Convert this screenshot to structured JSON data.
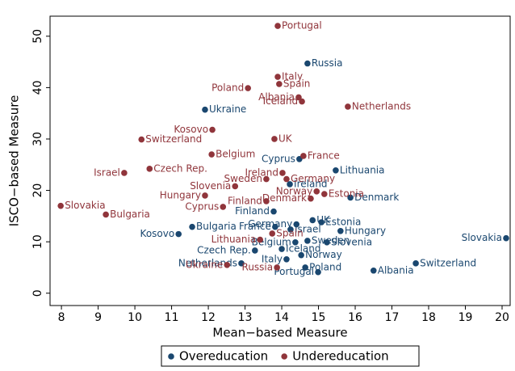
{
  "chart_data": {
    "type": "scatter",
    "x_label": "Mean−based Measure",
    "y_label": "ISCO−based Measure",
    "xlim": [
      7.69,
      20.22
    ],
    "ylim": [
      -2.4,
      53.9
    ],
    "xticks": [
      8,
      9,
      10,
      11,
      12,
      13,
      14,
      15,
      16,
      17,
      18,
      19,
      20
    ],
    "yticks": [
      0,
      10,
      20,
      30,
      40,
      50
    ],
    "legend": "bottom",
    "series": [
      {
        "name": "Overeducation",
        "color": "#1a476f",
        "labels": [
          "Russia",
          "Ukraine",
          "Cyprus",
          "Lithuania",
          "Ireland",
          "Denmark",
          "Finland",
          "Estonia",
          "UK",
          "Germany",
          "France",
          "Israel",
          "Hungary",
          "Bulgaria",
          "Kosovo",
          "Sweden",
          "Belgium",
          "Slovenia",
          "Iceland",
          "Czech Rep.",
          "Netherlands",
          "Italy",
          "Norway",
          "Poland",
          "Portugal",
          "Albania",
          "Switzerland",
          "Slovakia"
        ],
        "x": [
          14.7,
          11.91,
          14.48,
          15.47,
          14.22,
          15.87,
          13.78,
          15.08,
          14.84,
          14.4,
          13.82,
          14.24,
          15.6,
          11.56,
          11.19,
          14.7,
          14.37,
          15.23,
          14.0,
          13.27,
          12.9,
          14.13,
          14.53,
          14.64,
          14.99,
          16.5,
          17.65,
          20.11
        ],
        "y": [
          44.7,
          35.7,
          26.1,
          23.9,
          21.2,
          18.6,
          15.9,
          13.8,
          14.2,
          13.4,
          12.9,
          12.4,
          12.1,
          12.9,
          11.5,
          10.2,
          9.9,
          9.9,
          8.6,
          8.3,
          5.8,
          6.6,
          7.4,
          5.0,
          4.1,
          4.4,
          5.8,
          10.7
        ]
      },
      {
        "name": "Undereducation",
        "color": "#90353b",
        "labels": [
          "Portugal",
          "Italy",
          "Spain",
          "Poland",
          "Albania",
          "Iceland",
          "Netherlands",
          "Kosovo",
          "UK",
          "Switzerland",
          "Belgium",
          "France",
          "Czech Rep.",
          "Israel",
          "Ireland",
          "Germany",
          "Sweden",
          "Norway",
          "Estonia",
          "Slovenia",
          "Hungary",
          "Denmark",
          "Finland",
          "Cyprus",
          "Slovakia",
          "Bulgaria",
          "Spain",
          "Lithuania",
          "Russia",
          "Ukraine"
        ],
        "x": [
          13.89,
          13.89,
          13.93,
          13.08,
          14.46,
          14.55,
          15.8,
          12.11,
          13.8,
          10.18,
          12.09,
          14.59,
          10.4,
          9.71,
          14.02,
          14.13,
          13.58,
          14.95,
          15.16,
          12.73,
          11.91,
          14.79,
          13.58,
          12.4,
          7.98,
          9.21,
          13.74,
          13.41,
          13.87,
          12.51
        ],
        "y": [
          52.0,
          42.1,
          40.7,
          39.9,
          38.1,
          37.3,
          36.3,
          31.8,
          30.0,
          29.9,
          27.0,
          26.7,
          24.2,
          23.4,
          23.4,
          22.2,
          22.2,
          19.8,
          19.3,
          20.8,
          19.0,
          18.4,
          17.9,
          16.8,
          17.0,
          15.3,
          11.6,
          10.4,
          5.0,
          5.5
        ]
      }
    ]
  }
}
